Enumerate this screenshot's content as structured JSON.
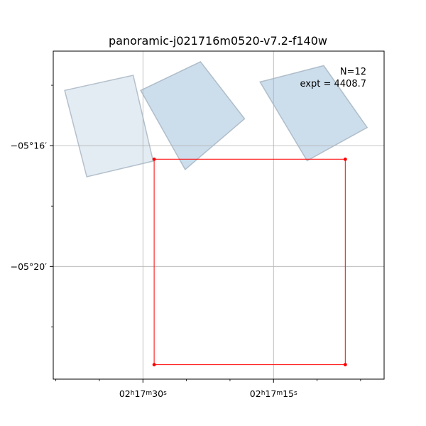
{
  "chart_data": {
    "type": "footprint-map",
    "title": "panoramic-j021716m0520-v7.2-f140w",
    "annotation": {
      "line1": "N=12",
      "line2": "expt = 4408.7"
    },
    "x_major_ticks": [
      {
        "value": 30,
        "label_parts": [
          "02",
          "h",
          "17",
          "m",
          "30",
          "s"
        ]
      },
      {
        "value": 15,
        "label_parts": [
          "02",
          "h",
          "17",
          "m",
          "15",
          "s"
        ]
      }
    ],
    "y_major_ticks": [
      {
        "value": -16,
        "label": "−05°16′"
      },
      {
        "value": -20,
        "label": "−05°20′"
      }
    ],
    "x_minor_ticks": [
      40,
      35,
      25,
      20,
      10,
      5
    ],
    "y_minor_ticks": [
      -14,
      -18,
      -22
    ],
    "xlim": [
      40.3,
      2.3
    ],
    "ylim": [
      -23.73,
      -12.87
    ],
    "grid": true,
    "footprints": [
      {
        "name": "exposure-1",
        "color": "#b0c8dc",
        "alpha": 0.35,
        "corners": [
          [
            38.99,
            -14.17
          ],
          [
            31.12,
            -13.67
          ],
          [
            28.83,
            -16.51
          ],
          [
            36.45,
            -17.03
          ]
        ]
      },
      {
        "name": "exposure-2",
        "color": "#8fb4d4",
        "alpha": 0.45,
        "corners": [
          [
            30.26,
            -14.17
          ],
          [
            23.39,
            -13.22
          ],
          [
            18.32,
            -15.11
          ],
          [
            25.15,
            -16.79
          ]
        ]
      },
      {
        "name": "exposure-3",
        "color": "#8fb4d4",
        "alpha": 0.45,
        "corners": [
          [
            16.55,
            -13.89
          ],
          [
            9.24,
            -13.35
          ],
          [
            4.24,
            -15.4
          ],
          [
            11.15,
            -16.5
          ]
        ]
      }
    ],
    "region": {
      "color": "#ff0000",
      "corners": [
        [
          28.71,
          -16.45
        ],
        [
          6.76,
          -16.45
        ],
        [
          6.76,
          -23.25
        ],
        [
          28.71,
          -23.25
        ]
      ]
    }
  }
}
